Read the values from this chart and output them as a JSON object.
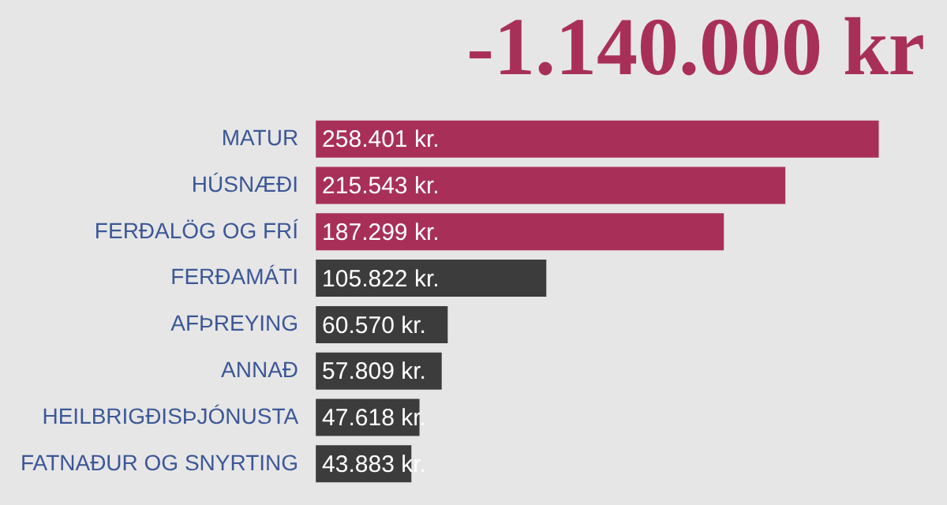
{
  "chart_data": {
    "type": "bar",
    "orientation": "horizontal",
    "title": "-1.140.000 kr",
    "categories": [
      "MATUR",
      "HÚSNÆÐI",
      "FERÐALÖG OG FRÍ",
      "FERÐAMÁTI",
      "AFÞREYING",
      "ANNAÐ",
      "HEILBRIGÐISÞJÓNUSTA",
      "FATNAÐUR OG SNYRTING"
    ],
    "values": [
      258401,
      215543,
      187299,
      105822,
      60570,
      57809,
      47618,
      43883
    ],
    "colors": [
      "#a83058",
      "#a83058",
      "#a83058",
      "#3c3c3c",
      "#3c3c3c",
      "#3c3c3c",
      "#3c3c3c",
      "#3c3c3c"
    ],
    "value_labels": [
      "258.401 kr.",
      "215.543 kr.",
      "187.299 kr.",
      "105.822 kr.",
      "60.570 kr.",
      "57.809 kr.",
      "47.618 kr.",
      "43.883 kr."
    ],
    "legend": false
  }
}
